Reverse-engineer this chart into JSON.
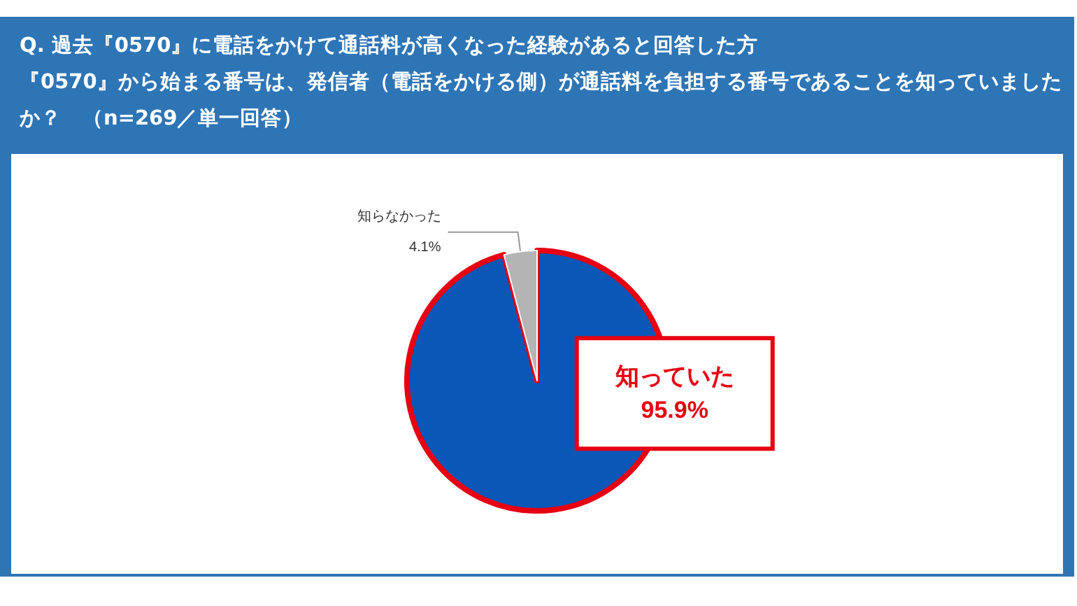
{
  "chart_data": {
    "type": "pie",
    "title": "Q. 過去『0570』に電話をかけて通話料が高くなった経験があると回答した方",
    "subtitle": "『0570』から始まる番号は、発信者（電話をかける側）が通話料を負担する番号であることを知っていましたか？　（n=269／単一回答）",
    "categories": [
      "知っていた",
      "知らなかった"
    ],
    "values": [
      95.9,
      4.1
    ],
    "colors": [
      "#0a57b8",
      "#b4b4b4"
    ],
    "value_labels": [
      "95.9%",
      "4.1%"
    ]
  }
}
